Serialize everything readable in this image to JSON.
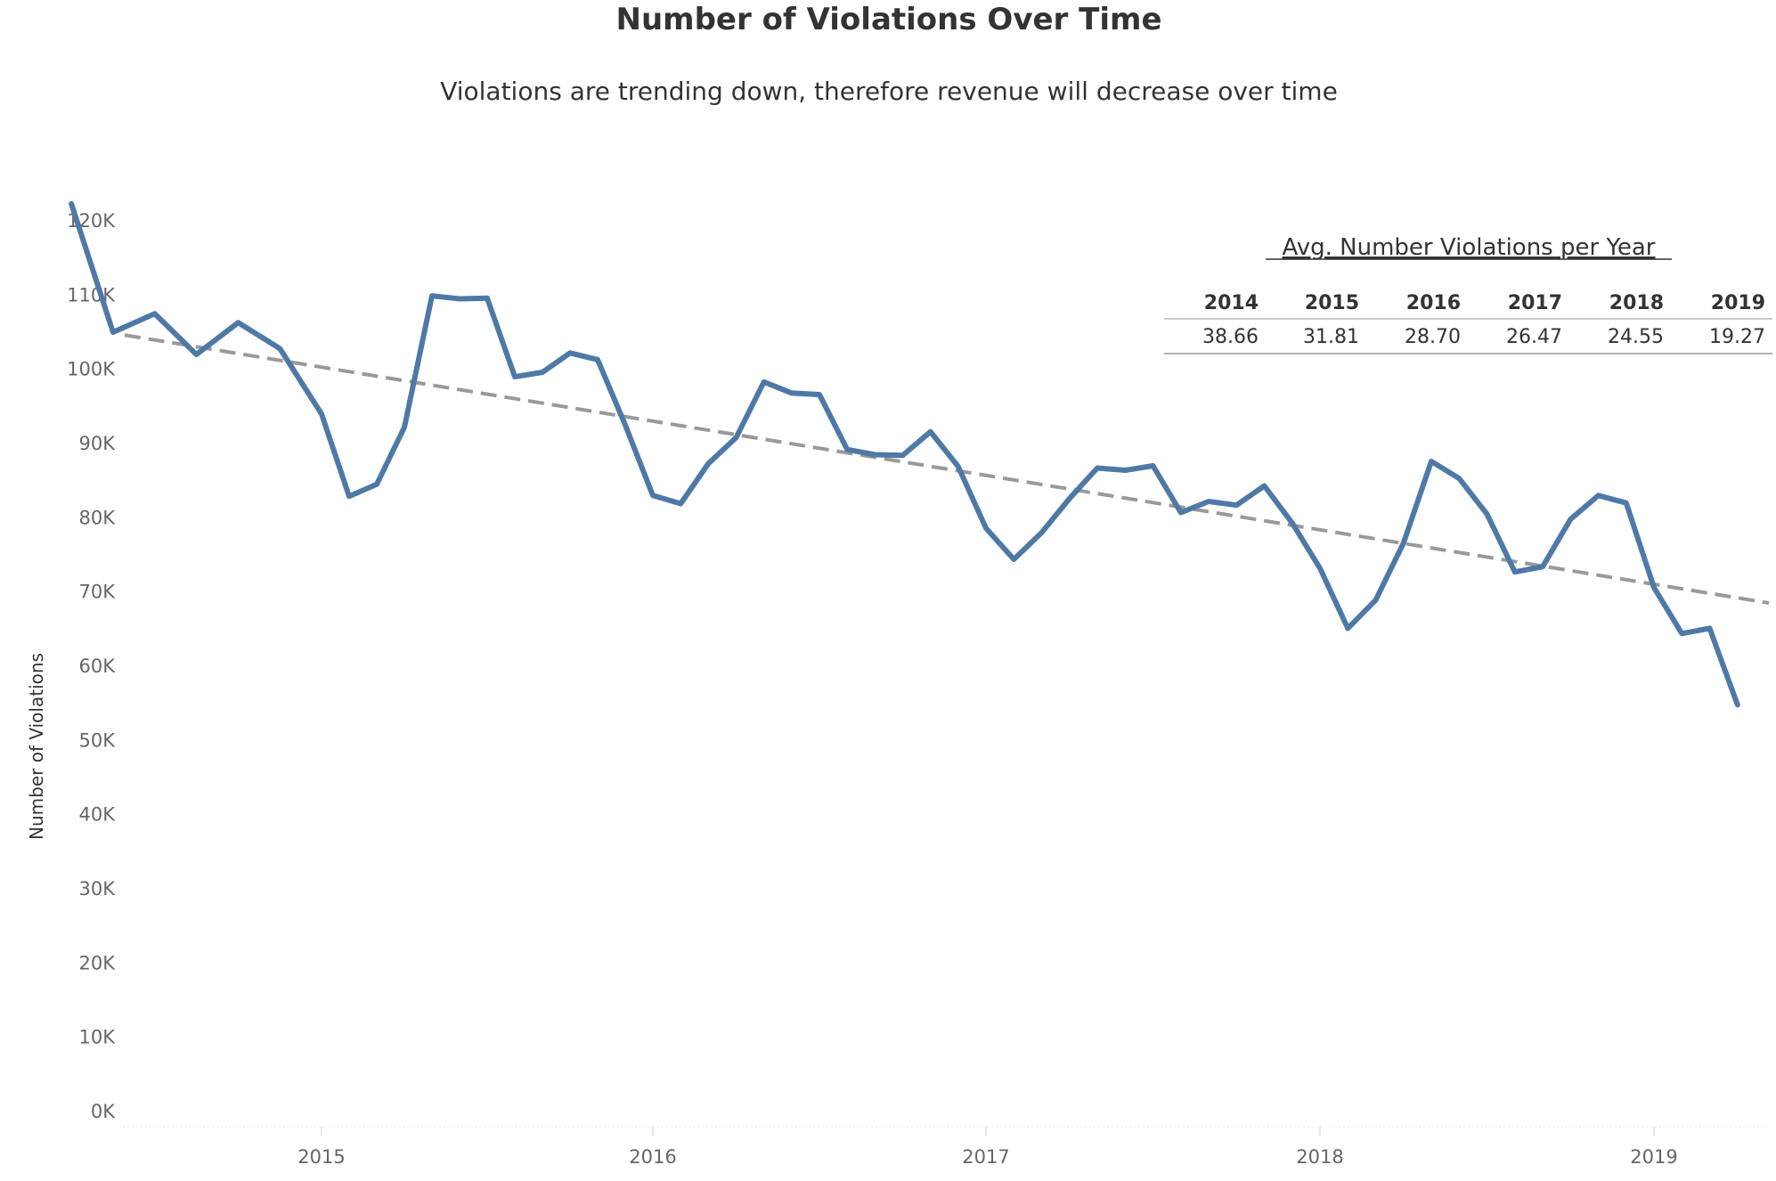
{
  "chart_data": {
    "type": "line",
    "title": "Number of Violations Over Time",
    "subtitle": "Violations are trending down, therefore revenue will decrease over time",
    "ylabel": "Number of Violations",
    "xlabel": "",
    "ylim": [
      0,
      120000
    ],
    "y_ticks": [
      "0K",
      "10K",
      "20K",
      "30K",
      "40K",
      "50K",
      "60K",
      "70K",
      "80K",
      "90K",
      "100K",
      "110K",
      "120K"
    ],
    "x_ticks": [
      "2015",
      "2016",
      "2017",
      "2018",
      "2019"
    ],
    "xlim": [
      "2014-06",
      "2019-05"
    ],
    "grid": false,
    "series": [
      {
        "color": "#4e79a7",
        "x": [
          "2014-07",
          "2014-08",
          "2014-09",
          "2014-10",
          "2014-11",
          "2014-12",
          "2015-01",
          "2015-02",
          "2015-03",
          "2015-04",
          "2015-05",
          "2015-06",
          "2015-07",
          "2015-08",
          "2015-09",
          "2015-10",
          "2015-11",
          "2015-12",
          "2016-01",
          "2016-02",
          "2016-03",
          "2016-04",
          "2016-05",
          "2016-06",
          "2016-07",
          "2016-08",
          "2016-09",
          "2016-10",
          "2016-11",
          "2016-12",
          "2017-01",
          "2017-02",
          "2017-03",
          "2017-04",
          "2017-05",
          "2017-06",
          "2017-07",
          "2017-08",
          "2017-09",
          "2017-10",
          "2017-11",
          "2017-12",
          "2018-01",
          "2018-02",
          "2018-03",
          "2018-04",
          "2018-05",
          "2018-06",
          "2018-07",
          "2018-08",
          "2018-09",
          "2018-10",
          "2018-11",
          "2018-12",
          "2019-01",
          "2019-02",
          "2019-03",
          "2019-04"
        ],
        "values": [
          122300,
          105000,
          107500,
          102000,
          106300,
          102800,
          94000,
          82900,
          84500,
          92200,
          109900,
          109500,
          109600,
          99000,
          99600,
          102200,
          101300,
          92500,
          83000,
          81900,
          87300,
          90800,
          98300,
          96800,
          96600,
          89200,
          88500,
          88400,
          91600,
          86900,
          78600,
          74400,
          78000,
          82600,
          86700,
          86400,
          87000,
          80700,
          82200,
          81700,
          84300,
          79300,
          73200,
          65100,
          68900,
          76600,
          87600,
          85300,
          80500,
          72700,
          73400,
          79800,
          83000,
          82000,
          70600,
          64400,
          65100,
          54800
        ]
      }
    ],
    "trend_line": {
      "color": "#999999",
      "style": "dashed",
      "x": [
        "2014-06",
        "2019-05"
      ],
      "values": [
        106700,
        68600
      ]
    },
    "table": {
      "title": "Avg. Number Violations per Year",
      "columns": [
        "2014",
        "2015",
        "2016",
        "2017",
        "2018",
        "2019"
      ],
      "values": [
        "38.66",
        "31.81",
        "28.70",
        "26.47",
        "24.55",
        "19.27"
      ]
    }
  }
}
